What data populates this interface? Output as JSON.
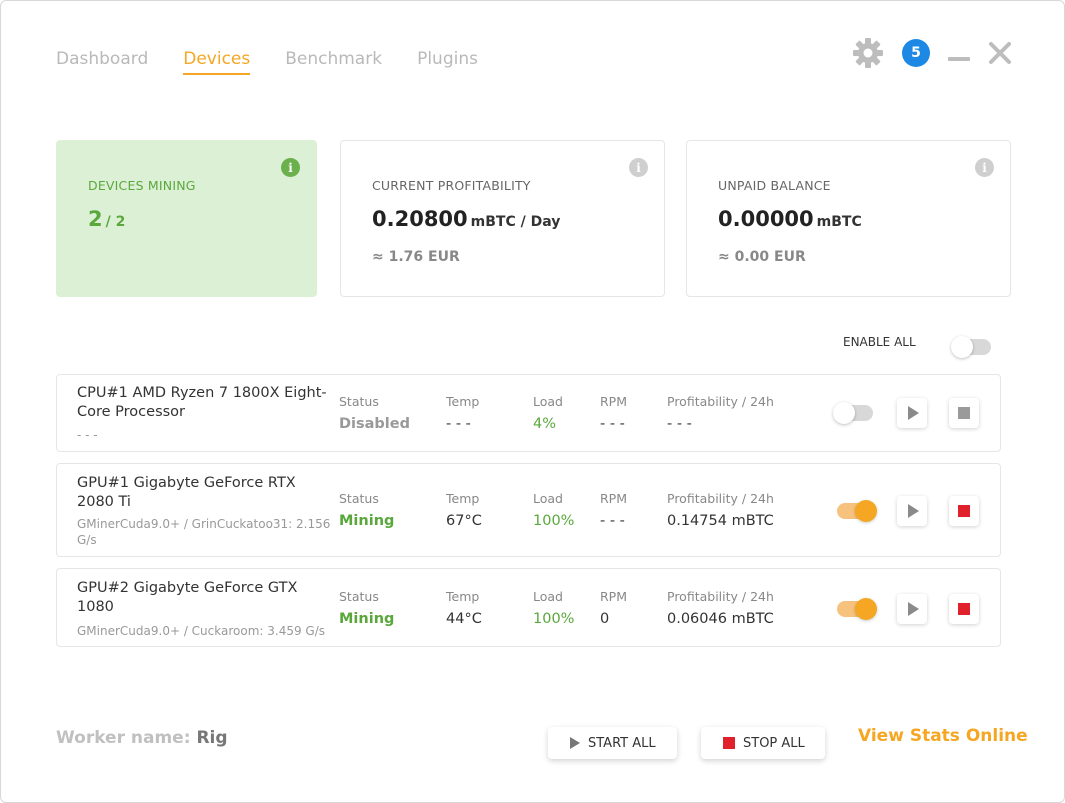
{
  "nav": {
    "tabs": [
      {
        "label": "Dashboard",
        "active": false
      },
      {
        "label": "Devices",
        "active": true
      },
      {
        "label": "Benchmark",
        "active": false
      },
      {
        "label": "Plugins",
        "active": false
      }
    ]
  },
  "window": {
    "notification_count": "5",
    "icons": [
      "gear-icon",
      "minimize-icon",
      "close-icon"
    ]
  },
  "summary": {
    "devices_mining": {
      "label": "DEVICES MINING",
      "active": "2",
      "total": "/ 2"
    },
    "profitability": {
      "label": "CURRENT PROFITABILITY",
      "value": "0.20800",
      "unit": "mBTC / Day",
      "fiat": "≈ 1.76 EUR"
    },
    "balance": {
      "label": "UNPAID BALANCE",
      "value": "0.00000",
      "unit": "mBTC",
      "fiat": "≈ 0.00 EUR"
    }
  },
  "enable_all": {
    "label": "ENABLE ALL",
    "enabled": false
  },
  "columns": {
    "status": "Status",
    "temp": "Temp",
    "load": "Load",
    "rpm": "RPM",
    "profit": "Profitability / 24h"
  },
  "devices": [
    {
      "name": "CPU#1 AMD Ryzen 7 1800X Eight-Core Processor",
      "algo": "- - -",
      "status": "Disabled",
      "temp": "- - -",
      "load": "4%",
      "rpm": "- - -",
      "profit": "- - -",
      "enabled": false
    },
    {
      "name": "GPU#1 Gigabyte GeForce RTX 2080 Ti",
      "algo": "GMinerCuda9.0+ / GrinCuckatoo31: 2.156 G/s",
      "status": "Mining",
      "temp": "67°C",
      "load": "100%",
      "rpm": "- - -",
      "profit": "0.14754 mBTC",
      "enabled": true
    },
    {
      "name": "GPU#2 Gigabyte GeForce GTX 1080",
      "algo": "GMinerCuda9.0+ / Cuckaroom: 3.459 G/s",
      "status": "Mining",
      "temp": "44°C",
      "load": "100%",
      "rpm": "0",
      "profit": "0.06046 mBTC",
      "enabled": true
    }
  ],
  "footer": {
    "worker_label": "Worker name:",
    "worker_name": "Rig",
    "start_all": "START ALL",
    "stop_all": "STOP ALL",
    "view_stats": "View Stats Online"
  },
  "colors": {
    "accent": "#f5a623",
    "green": "#5aa83c",
    "badge": "#1e88e5",
    "stop_red": "#e0202a"
  }
}
